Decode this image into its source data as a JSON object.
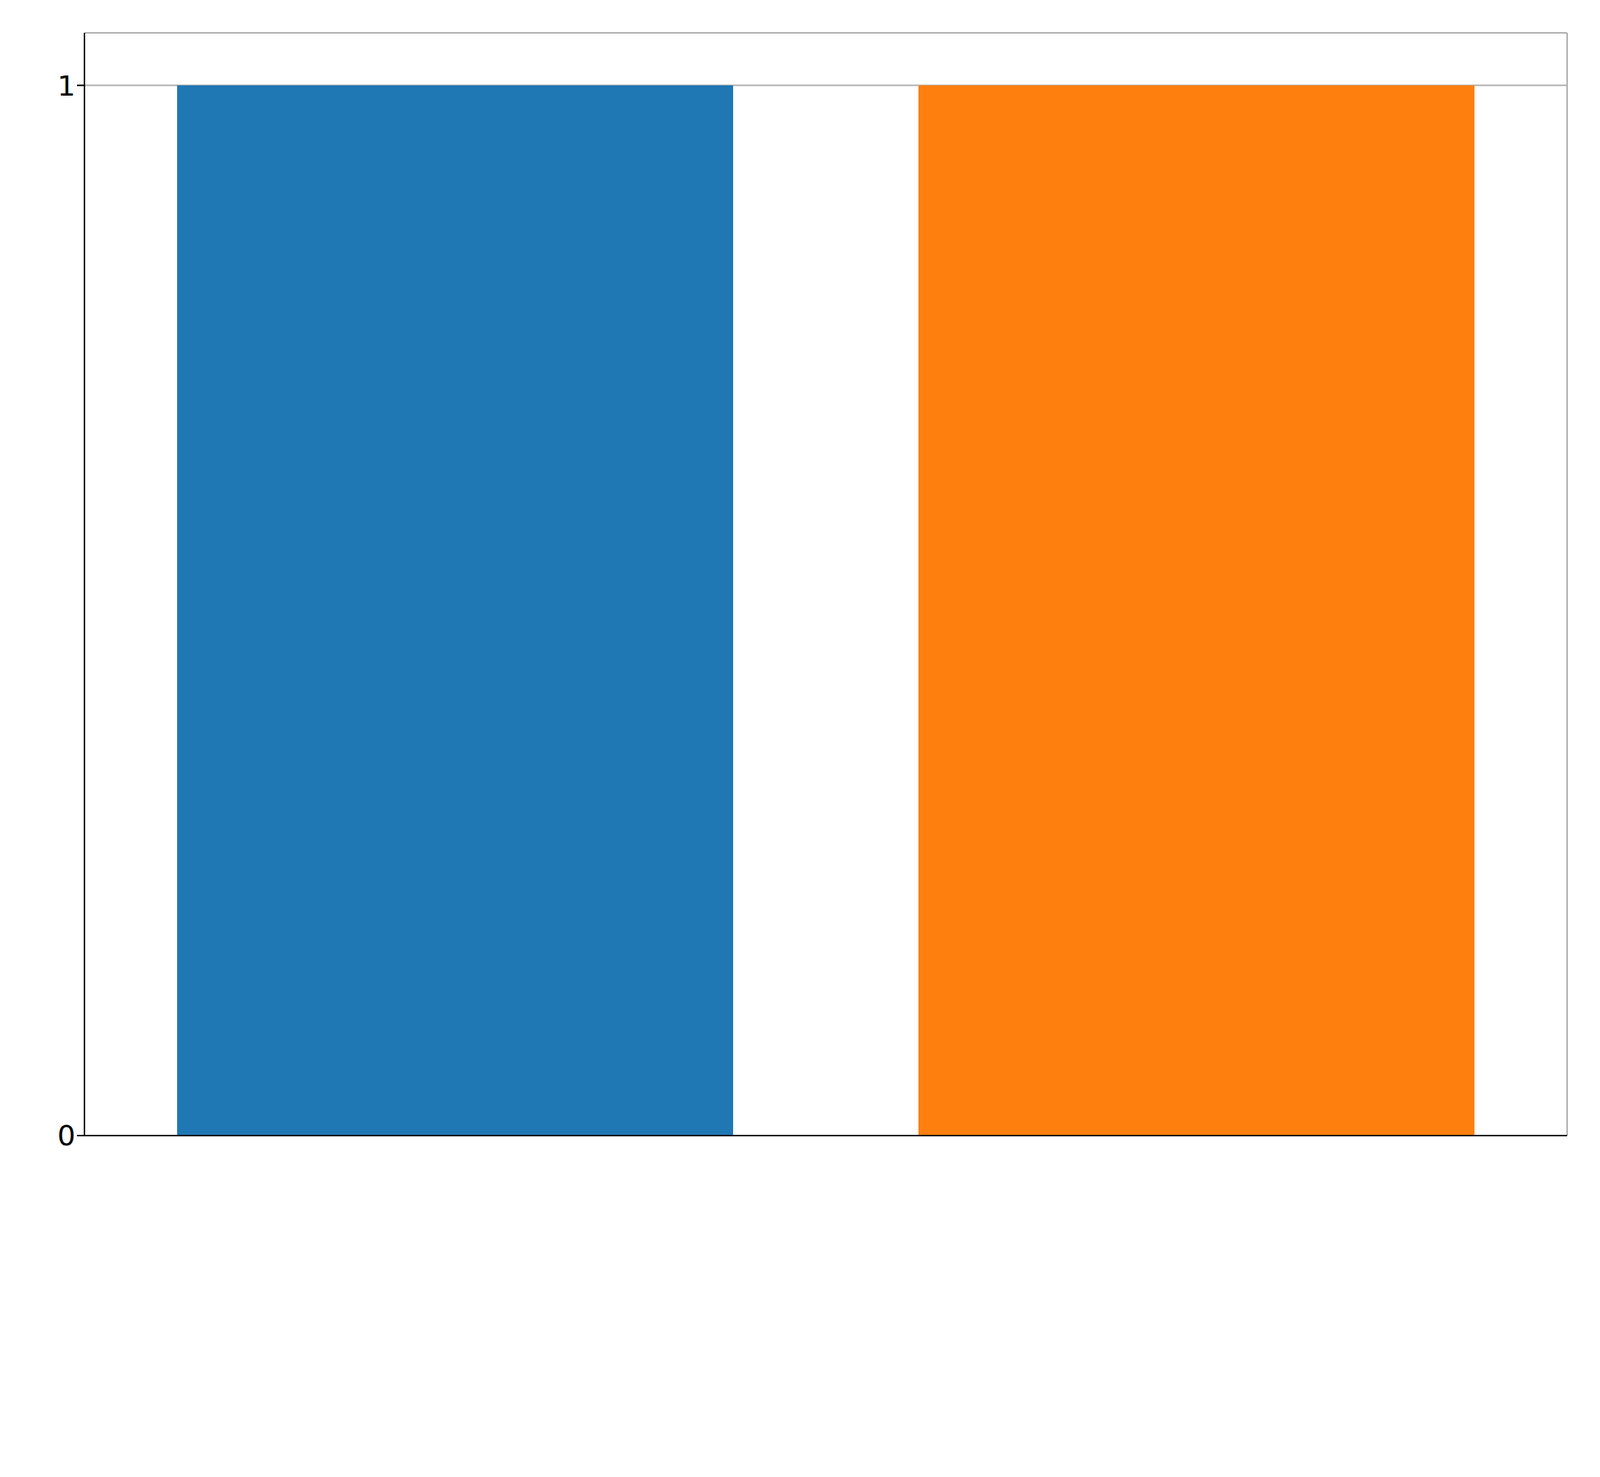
{
  "chart_data": {
    "type": "bar",
    "categories": [
      null,
      null
    ],
    "values": [
      1,
      1
    ],
    "colors": [
      "#1f77b4",
      "#ff7f0e"
    ],
    "ylim": [
      0,
      1.05
    ],
    "yticks": [
      0,
      1
    ],
    "grid": true,
    "tick_labels": "y"
  }
}
